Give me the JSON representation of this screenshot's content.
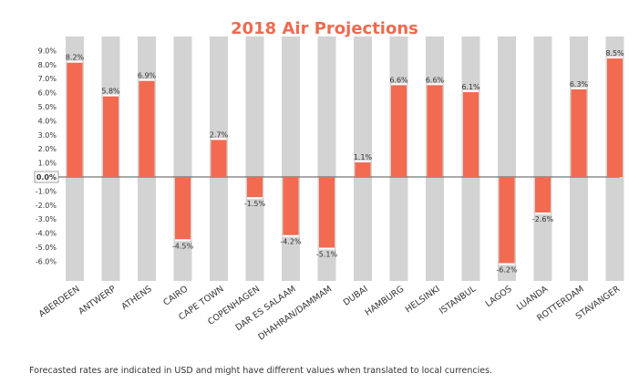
{
  "chart_data": {
    "type": "bar",
    "title": "2018 Air Projections",
    "categories": [
      "ABERDEEN",
      "ANTWERP",
      "ATHENS",
      "CAIRO",
      "CAPE TOWN",
      "COPENHAGEN",
      "DAR ES SALAAM",
      "DHAHRAN/DAMMAM",
      "DUBAI",
      "HAMBURG",
      "HELSINKI",
      "ISTANBUL",
      "LAGOS",
      "LUANDA",
      "ROTTERDAM",
      "STAVANGER"
    ],
    "values": [
      8.2,
      5.8,
      6.9,
      -4.5,
      2.7,
      -1.5,
      -4.2,
      -5.1,
      1.1,
      6.6,
      6.6,
      6.1,
      -6.2,
      -2.6,
      6.3,
      8.5
    ],
    "value_labels": [
      "8.2%",
      "5.8%",
      "6.9%",
      "-4.5%",
      "2.7%",
      "-1.5%",
      "-4.2%",
      "-5.1%",
      "1.1%",
      "6.6%",
      "6.6%",
      "6.1%",
      "-6.2%",
      "-2.6%",
      "6.3%",
      "8.5%"
    ],
    "y_ticks": [
      9,
      8,
      7,
      6,
      5,
      4,
      3,
      2,
      1,
      0,
      -1,
      -2,
      -3,
      -4,
      -5,
      -6
    ],
    "y_tick_labels": [
      "9.0%",
      "8.0%",
      "7.0%",
      "6.0%",
      "5.0%",
      "4.0%",
      "3.0%",
      "2.0%",
      "1.0%",
      "0.0%",
      "-1.0%",
      "-2.0%",
      "-3.0%",
      "-4.0%",
      "-5.0%",
      "-6.0%"
    ],
    "ylim": [
      -7.4,
      9.3
    ],
    "xlabel": "",
    "ylabel": "",
    "grid": false,
    "legend": "none",
    "colors": {
      "bar": "#f26a50",
      "background_column": "#d3d3d3",
      "title": "#ee6a4f"
    }
  },
  "footnote": "Forecasted rates are indicated in USD and might have different values when translated to local currencies."
}
